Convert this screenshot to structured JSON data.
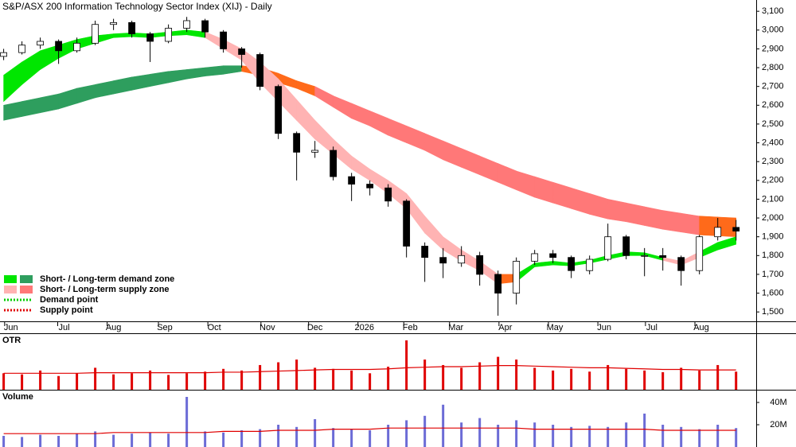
{
  "chart_data": {
    "type": "candlestick",
    "title": "S&P/ASX 200 Information Technology Sector Index (XIJ) - Daily",
    "xlim": [
      -0.2,
      41.1
    ],
    "xticks": [
      {
        "value": 0.4,
        "label": "Jun"
      },
      {
        "value": 3.3,
        "label": "Jul"
      },
      {
        "value": 6,
        "label": "Aug"
      },
      {
        "value": 8.8,
        "label": "Sep"
      },
      {
        "value": 11.5,
        "label": "Oct"
      },
      {
        "value": 14.4,
        "label": "Nov"
      },
      {
        "value": 17,
        "label": "Dec"
      },
      {
        "value": 19.7,
        "label": "2026"
      },
      {
        "value": 22.2,
        "label": "Feb"
      },
      {
        "value": 24.7,
        "label": "Mar"
      },
      {
        "value": 27.4,
        "label": "Apr"
      },
      {
        "value": 30.1,
        "label": "May"
      },
      {
        "value": 32.8,
        "label": "Jun"
      },
      {
        "value": 35.4,
        "label": "Jul"
      },
      {
        "value": 38.1,
        "label": "Aug"
      }
    ],
    "ylim": [
      1450,
      3160
    ],
    "yticks": [
      {
        "value": 1500,
        "label": "1,500"
      },
      {
        "value": 1600,
        "label": "1,600"
      },
      {
        "value": 1700,
        "label": "1,700"
      },
      {
        "value": 1800,
        "label": "1,800"
      },
      {
        "value": 1900,
        "label": "1,900"
      },
      {
        "value": 2000,
        "label": "2,000"
      },
      {
        "value": 2100,
        "label": "2,100"
      },
      {
        "value": 2200,
        "label": "2,200"
      },
      {
        "value": 2300,
        "label": "2,300"
      },
      {
        "value": 2400,
        "label": "2,400"
      },
      {
        "value": 2500,
        "label": "2,500"
      },
      {
        "value": 2600,
        "label": "2,600"
      },
      {
        "value": 2700,
        "label": "2,700"
      },
      {
        "value": 2800,
        "label": "2,800"
      },
      {
        "value": 2900,
        "label": "2,900"
      },
      {
        "value": 3000,
        "label": "3,000"
      },
      {
        "value": 3100,
        "label": "3,100"
      }
    ],
    "candles": {
      "open": [
        2860,
        2880,
        2920,
        2940,
        2890,
        2930,
        3030,
        3040,
        2980,
        2940,
        3010,
        3050,
        2990,
        2900,
        2870,
        2700,
        2450,
        2350,
        2360,
        2220,
        2180,
        2160,
        2090,
        1850,
        1790,
        1760,
        1800,
        1700,
        1600,
        1770,
        1810,
        1790,
        1720,
        1780,
        1900,
        1800,
        1800,
        1790,
        1720,
        1900,
        1950
      ],
      "high": [
        2900,
        2940,
        2960,
        2950,
        2960,
        3050,
        3060,
        3050,
        2990,
        3030,
        3070,
        3060,
        3000,
        2910,
        2880,
        2710,
        2460,
        2410,
        2380,
        2240,
        2200,
        2180,
        2100,
        1870,
        1840,
        1850,
        1820,
        1720,
        1790,
        1830,
        1830,
        1800,
        1800,
        1970,
        1910,
        1840,
        1840,
        1800,
        1910,
        2000,
        1990
      ],
      "low": [
        2840,
        2870,
        2900,
        2820,
        2880,
        2920,
        3000,
        2960,
        2830,
        2930,
        2990,
        2960,
        2880,
        2800,
        2680,
        2420,
        2200,
        2320,
        2200,
        2090,
        2120,
        2060,
        1790,
        1660,
        1680,
        1740,
        1640,
        1480,
        1540,
        1750,
        1760,
        1680,
        1700,
        1770,
        1780,
        1690,
        1720,
        1640,
        1700,
        1880,
        1880
      ],
      "close": [
        2880,
        2920,
        2940,
        2890,
        2930,
        3030,
        3040,
        2980,
        2940,
        3010,
        3050,
        2990,
        2900,
        2870,
        2700,
        2450,
        2350,
        2360,
        2220,
        2180,
        2160,
        2090,
        1850,
        1790,
        1760,
        1800,
        1700,
        1600,
        1770,
        1810,
        1790,
        1720,
        1780,
        1900,
        1800,
        1800,
        1790,
        1720,
        1900,
        1950,
        1930
      ]
    },
    "short_band": {
      "upper": [
        2760,
        2830,
        2890,
        2920,
        2950,
        2970,
        2980,
        2985,
        2980,
        2990,
        3000,
        2990,
        2950,
        2900,
        2830,
        2740,
        2630,
        2520,
        2420,
        2330,
        2260,
        2200,
        2130,
        2010,
        1900,
        1830,
        1770,
        1700,
        1700,
        1760,
        1770,
        1760,
        1775,
        1800,
        1820,
        1815,
        1790,
        1770,
        1820,
        1870,
        1900
      ],
      "lower": [
        2620,
        2710,
        2790,
        2850,
        2900,
        2930,
        2960,
        2965,
        2960,
        2970,
        2975,
        2960,
        2900,
        2840,
        2720,
        2620,
        2520,
        2420,
        2340,
        2260,
        2200,
        2130,
        2050,
        1920,
        1830,
        1770,
        1720,
        1650,
        1660,
        1740,
        1750,
        1745,
        1760,
        1780,
        1800,
        1800,
        1775,
        1750,
        1790,
        1830,
        1860
      ],
      "zone": [
        "demand",
        "demand",
        "demand",
        "demand",
        "demand",
        "demand",
        "demand",
        "demand",
        "demand",
        "demand",
        "demand",
        "supply",
        "supply",
        "supply",
        "supply",
        "supply",
        "supply",
        "supply",
        "supply",
        "supply",
        "supply",
        "supply",
        "supply",
        "supply",
        "supply",
        "supply",
        "supply",
        "transition",
        "demand",
        "demand",
        "demand",
        "demand",
        "demand",
        "demand",
        "demand",
        "demand",
        "supply",
        "supply",
        "demand",
        "demand",
        "demand"
      ]
    },
    "long_band": {
      "upper": [
        2600,
        2620,
        2640,
        2660,
        2690,
        2710,
        2730,
        2750,
        2765,
        2780,
        2790,
        2800,
        2810,
        2810,
        2800,
        2770,
        2730,
        2700,
        2650,
        2610,
        2570,
        2530,
        2490,
        2450,
        2410,
        2370,
        2330,
        2290,
        2250,
        2220,
        2190,
        2160,
        2130,
        2100,
        2080,
        2060,
        2040,
        2025,
        2010,
        2005,
        2000
      ],
      "lower": [
        2520,
        2540,
        2560,
        2580,
        2610,
        2640,
        2660,
        2680,
        2700,
        2720,
        2740,
        2755,
        2765,
        2780,
        2760,
        2720,
        2690,
        2650,
        2590,
        2530,
        2490,
        2440,
        2400,
        2360,
        2310,
        2270,
        2230,
        2190,
        2150,
        2110,
        2080,
        2050,
        2020,
        1995,
        1980,
        1960,
        1940,
        1925,
        1910,
        1905,
        1900
      ],
      "zone": [
        "demand",
        "demand",
        "demand",
        "demand",
        "demand",
        "demand",
        "demand",
        "demand",
        "demand",
        "demand",
        "demand",
        "demand",
        "demand",
        "transition",
        "transition",
        "transition",
        "transition",
        "supply",
        "supply",
        "supply",
        "supply",
        "supply",
        "supply",
        "supply",
        "supply",
        "supply",
        "supply",
        "supply",
        "supply",
        "supply",
        "supply",
        "supply",
        "supply",
        "supply",
        "supply",
        "supply",
        "supply",
        "supply",
        "transition",
        "transition",
        "transition"
      ]
    },
    "zone_colors": {
      "short": {
        "demand": "#00e600",
        "supply": "#ffb3b3",
        "transition": "#ff6a1a"
      },
      "long": {
        "demand": "#2e9e5e",
        "supply": "#ff7878",
        "transition": "#ff6a1a"
      }
    },
    "legend": [
      {
        "label": "Short- / Long-term demand zone",
        "colors": [
          "#00e600",
          "#2e9e5e"
        ]
      },
      {
        "label": "Short- / Long-term supply zone",
        "colors": [
          "#ffb3b3",
          "#ff7878"
        ]
      },
      {
        "label": "Demand point",
        "line": "#00cc00"
      },
      {
        "label": "Supply point",
        "line": "#e00000"
      }
    ],
    "otr": {
      "label": "OTR",
      "color": "#e00000",
      "ylim": [
        0,
        100
      ],
      "values": [
        30,
        28,
        35,
        25,
        30,
        40,
        28,
        30,
        35,
        27,
        30,
        33,
        38,
        35,
        45,
        50,
        55,
        40,
        38,
        35,
        30,
        42,
        90,
        55,
        45,
        40,
        50,
        60,
        55,
        40,
        35,
        38,
        33,
        45,
        38,
        35,
        32,
        40,
        35,
        45,
        33
      ],
      "average": [
        30,
        30,
        30,
        30,
        30,
        31,
        31,
        31,
        31,
        31,
        31,
        31,
        32,
        32,
        33,
        34,
        35,
        36,
        37,
        37,
        37,
        38,
        40,
        41,
        42,
        42,
        43,
        44,
        44,
        43,
        42,
        41,
        40,
        40,
        39,
        38,
        37,
        37,
        36,
        36,
        36
      ]
    },
    "volume": {
      "label": "Volume",
      "color": "#6b6bd6",
      "average_color": "#e00000",
      "ylim": [
        0,
        50
      ],
      "yticks": [
        {
          "value": 20,
          "label": "20M"
        },
        {
          "value": 40,
          "label": "40M"
        }
      ],
      "values": [
        10,
        9,
        11,
        10,
        12,
        14,
        11,
        12,
        13,
        12,
        45,
        14,
        13,
        15,
        16,
        20,
        18,
        25,
        17,
        16,
        15,
        20,
        24,
        28,
        38,
        22,
        26,
        20,
        24,
        22,
        20,
        18,
        19,
        18,
        22,
        30,
        20,
        18,
        16,
        20,
        17
      ],
      "average": [
        12,
        12,
        12,
        12,
        12,
        12,
        13,
        13,
        13,
        13,
        13,
        13,
        14,
        14,
        14,
        15,
        15,
        15,
        16,
        16,
        16,
        17,
        17,
        17,
        17,
        17,
        17,
        17,
        17,
        16,
        16,
        16,
        16,
        16,
        16,
        16,
        15,
        15,
        15,
        15,
        15
      ]
    }
  }
}
